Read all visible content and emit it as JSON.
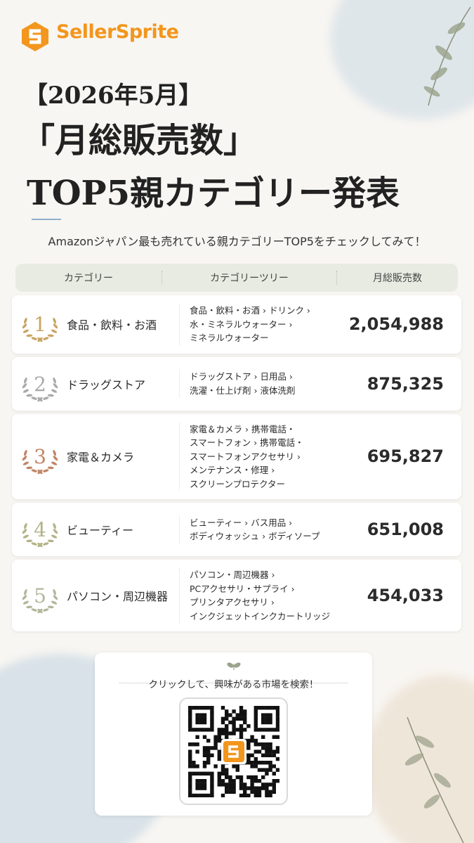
{
  "header": {
    "brand": "SellerSprite",
    "title_lines": [
      "【2026年5月】",
      "「月総販売数」",
      "TOP5親カテゴリー発表"
    ],
    "subtitle": "Amazonジャパン最も売れている親カテゴリーTOP5をチェックしてみて！"
  },
  "table": {
    "columns": [
      "カテゴリー",
      "カテゴリーツリー",
      "月総販売数"
    ],
    "rows": [
      {
        "rank": 1,
        "category": "食品・飲料・お酒",
        "tree": [
          "食品・飲料・お酒 › ドリンク ›",
          "水・ミネラルウォーター ›",
          "ミネラルウォーター"
        ],
        "sales": "2,054,988"
      },
      {
        "rank": 2,
        "category": "ドラッグストア",
        "tree": [
          "ドラッグストア › 日用品 ›",
          "洗濯・仕上げ剤 › 液体洗剤"
        ],
        "sales": "875,325"
      },
      {
        "rank": 3,
        "category": "家電＆カメラ",
        "tree": [
          "家電＆カメラ › 携帯電話・",
          "スマートフォン › 携帯電話・",
          "スマートフォンアクセサリ ›",
          "メンテナンス・修理 ›",
          "スクリーンプロテクター"
        ],
        "sales": "695,827"
      },
      {
        "rank": 4,
        "category": "ビューティー",
        "tree": [
          "ビューティー › バス用品 ›",
          "ボディウォッシュ › ボディソープ"
        ],
        "sales": "651,008"
      },
      {
        "rank": 5,
        "category": "パソコン・周辺機器",
        "tree": [
          "パソコン・周辺機器 ›",
          "PCアクセサリ・サプライ ›",
          "プリンタアクセサリ ›",
          "インクジェットインクカートリッジ"
        ],
        "sales": "454,033"
      }
    ]
  },
  "footer": {
    "cta": "クリックして、興味がある市場を検索！"
  }
}
